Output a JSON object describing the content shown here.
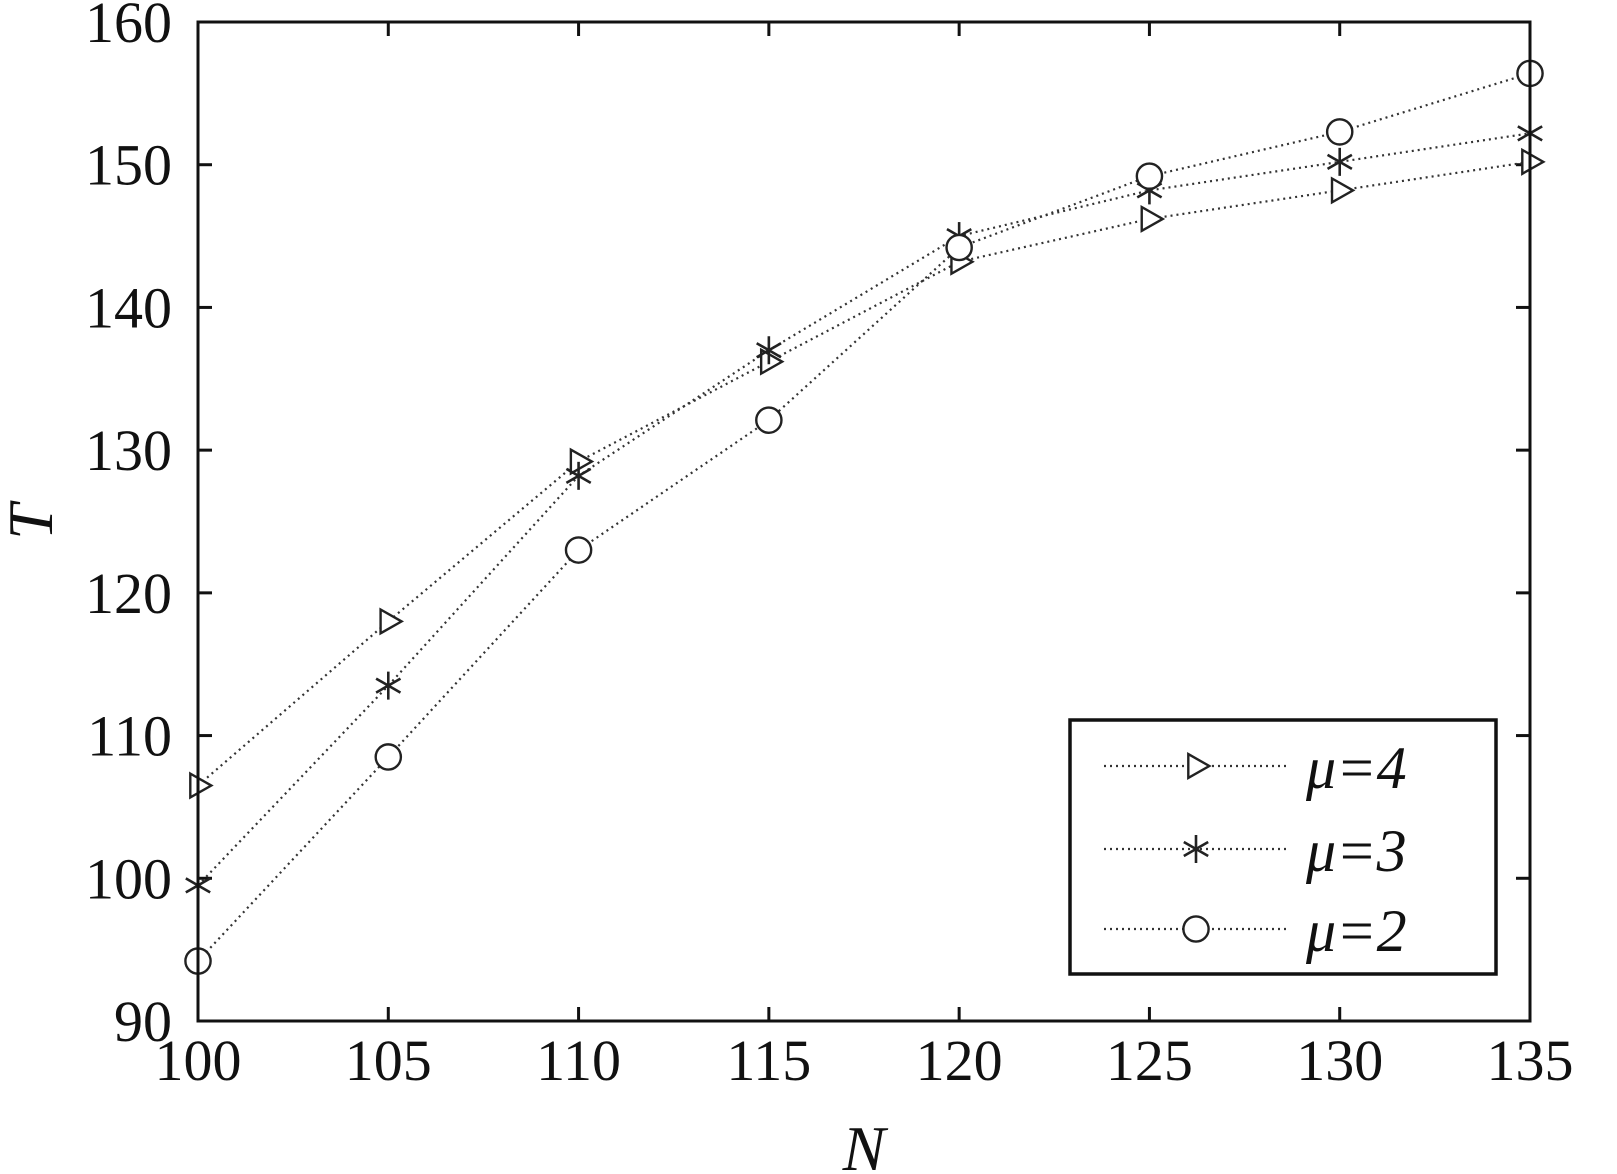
{
  "chart_data": {
    "type": "line",
    "title": "",
    "xlabel": "N",
    "ylabel": "T",
    "x": [
      100,
      105,
      110,
      115,
      120,
      125,
      130,
      135
    ],
    "xlim": [
      100,
      135
    ],
    "ylim": [
      90,
      160
    ],
    "xticks": [
      "100",
      "105",
      "110",
      "115",
      "120",
      "125",
      "130",
      "135"
    ],
    "yticks": [
      "90",
      "100",
      "110",
      "120",
      "130",
      "140",
      "150",
      "160"
    ],
    "grid": false,
    "legend_position": "bottom-right",
    "series": [
      {
        "name": "μ=4",
        "marker": "triangle-right",
        "line": "dotted",
        "values": [
          106.5,
          118,
          129.2,
          136.2,
          143.2,
          146.2,
          148.2,
          150.2
        ]
      },
      {
        "name": "μ=3",
        "marker": "star",
        "line": "dotted",
        "values": [
          99.5,
          113.5,
          128.2,
          137,
          145,
          148.2,
          150.2,
          152.2
        ]
      },
      {
        "name": "μ=2",
        "marker": "circle",
        "line": "dotted",
        "values": [
          94.2,
          108.5,
          123,
          132.1,
          144.2,
          149.2,
          152.3,
          156.4
        ]
      }
    ],
    "colors": {
      "line": "#333333",
      "marker": "#222222",
      "background": "#ffffff"
    }
  }
}
